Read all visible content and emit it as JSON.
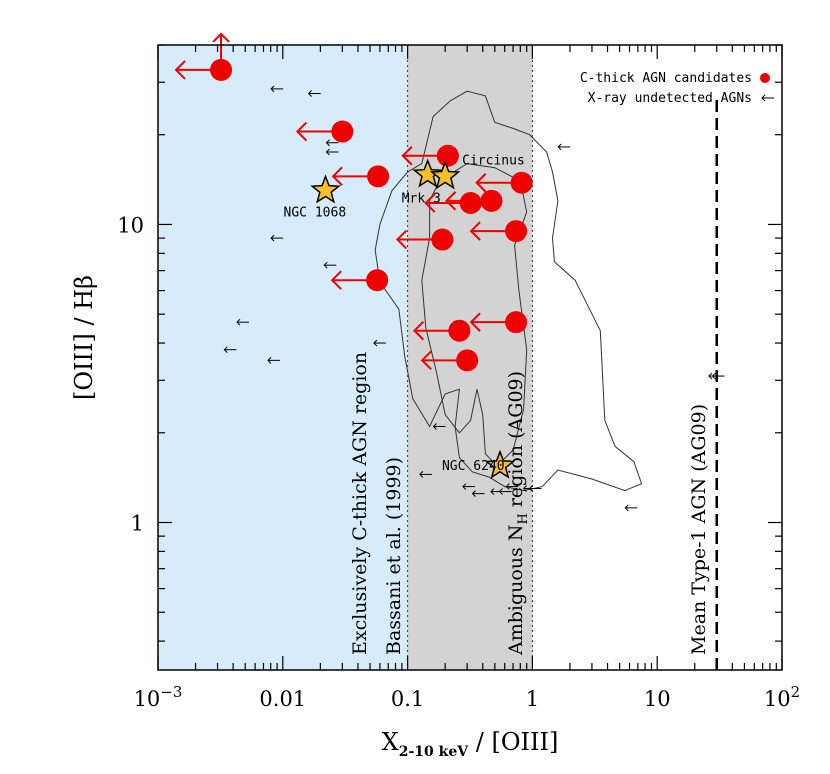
{
  "chart_data": {
    "type": "scatter",
    "xscale": "log",
    "yscale": "log",
    "xlim": [
      0.001,
      100
    ],
    "ylim": [
      0.32,
      40
    ],
    "xlabel": "X",
    "xlabel_sub": "2-10 keV",
    "xlabel_tail": " / [OIII]",
    "ylabel": "[OIII] / Hβ",
    "x_ticks": [
      {
        "v": 0.001,
        "base": "10",
        "exp": "−3"
      },
      {
        "v": 0.01,
        "base": "0.01",
        "exp": ""
      },
      {
        "v": 0.1,
        "base": "0.1",
        "exp": ""
      },
      {
        "v": 1,
        "base": "1",
        "exp": ""
      },
      {
        "v": 10,
        "base": "10",
        "exp": ""
      },
      {
        "v": 100,
        "base": "10",
        "exp": "2"
      }
    ],
    "y_ticks": [
      {
        "v": 1,
        "label": "1"
      },
      {
        "v": 10,
        "label": "10"
      }
    ],
    "regions": [
      {
        "x0": 0.001,
        "x1": 0.1,
        "color": "#d6ecfb",
        "label": "Exclusively C-thick AGN region",
        "label2": "Bassani et al. (1999)"
      },
      {
        "x0": 0.1,
        "x1": 1,
        "color": "#d3d3d3",
        "label": "Ambiguous N",
        "label_sub": "H",
        "label2": "region (AG09)"
      }
    ],
    "mean_type1_line": {
      "x": 30,
      "label": "Mean Type-1 AGN (AG09)"
    },
    "legend": [
      {
        "label": "C-thick AGN candidates",
        "marker": "filled-circle",
        "color": "#ee0000"
      },
      {
        "label": "X-ray undetected AGNs",
        "marker": "small-arrow",
        "color": "#000000"
      }
    ],
    "legend_position": "top-right",
    "series": [
      {
        "name": "C-thick AGN candidates",
        "color": "#ee0000",
        "points": [
          {
            "x": 0.0032,
            "y": 33,
            "up": true
          },
          {
            "x": 0.03,
            "y": 20.5
          },
          {
            "x": 0.058,
            "y": 14.5
          },
          {
            "x": 0.057,
            "y": 6.5
          },
          {
            "x": 0.21,
            "y": 17
          },
          {
            "x": 0.32,
            "y": 11.8
          },
          {
            "x": 0.47,
            "y": 12
          },
          {
            "x": 0.82,
            "y": 13.8
          },
          {
            "x": 0.74,
            "y": 9.5
          },
          {
            "x": 0.19,
            "y": 8.9
          },
          {
            "x": 0.74,
            "y": 4.7
          },
          {
            "x": 0.26,
            "y": 4.4
          },
          {
            "x": 0.3,
            "y": 3.5
          }
        ]
      },
      {
        "name": "X-ray undetected AGNs",
        "color": "#000000",
        "points": [
          {
            "x": 0.009,
            "y": 28.5
          },
          {
            "x": 0.018,
            "y": 27.5
          },
          {
            "x": 0.025,
            "y": 18.8
          },
          {
            "x": 0.025,
            "y": 17.5
          },
          {
            "x": 0.009,
            "y": 9
          },
          {
            "x": 0.024,
            "y": 7.3
          },
          {
            "x": 0.0048,
            "y": 4.7
          },
          {
            "x": 0.0038,
            "y": 3.8
          },
          {
            "x": 0.0085,
            "y": 3.5
          },
          {
            "x": 0.06,
            "y": 4
          },
          {
            "x": 1.8,
            "y": 18.2
          },
          {
            "x": 0.18,
            "y": 2.1
          },
          {
            "x": 0.14,
            "y": 1.45
          },
          {
            "x": 0.31,
            "y": 1.32
          },
          {
            "x": 0.95,
            "y": 1.3
          },
          {
            "x": 1.06,
            "y": 1.3
          },
          {
            "x": 0.61,
            "y": 1.27
          },
          {
            "x": 0.52,
            "y": 1.27
          },
          {
            "x": 0.37,
            "y": 1.25
          },
          {
            "x": 0.69,
            "y": 1.32
          },
          {
            "x": 6.2,
            "y": 1.12
          },
          {
            "x": 29,
            "y": 3.1
          },
          {
            "x": 31,
            "y": 3.1
          }
        ]
      }
    ],
    "famous_objects": [
      {
        "name": "NGC 1068",
        "x": 0.022,
        "y": 13
      },
      {
        "name": "Mrk 3",
        "x": 0.145,
        "y": 14.7
      },
      {
        "name": "Circinus",
        "x": 0.2,
        "y": 14.5
      },
      {
        "name": "NGC 6240",
        "x": 0.55,
        "y": 1.55
      }
    ],
    "contour_label": "SDSS AGN density contours"
  }
}
